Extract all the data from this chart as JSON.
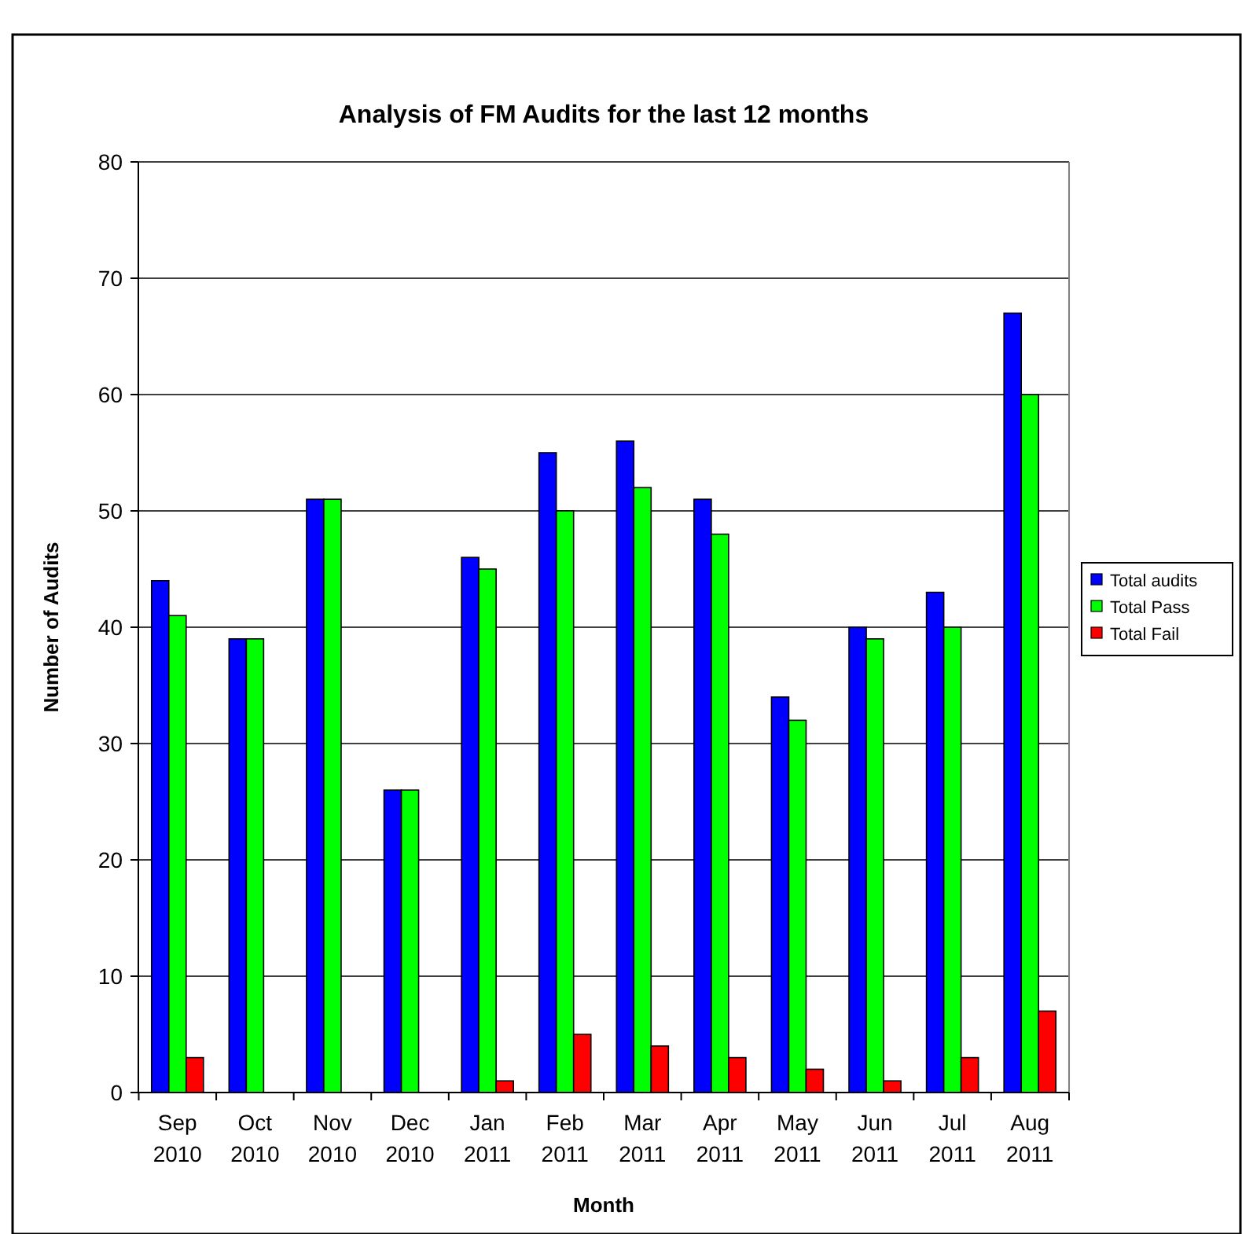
{
  "chart_data": {
    "type": "bar",
    "title": "Analysis of FM Audits for the last 12 months",
    "xlabel": "Month",
    "ylabel": "Number of Audits",
    "categories": [
      "Sep 2010",
      "Oct 2010",
      "Nov 2010",
      "Dec 2010",
      "Jan 2011",
      "Feb 2011",
      "Mar 2011",
      "Apr 2011",
      "May 2011",
      "Jun 2011",
      "Jul 2011",
      "Aug 2011"
    ],
    "series": [
      {
        "name": "Total audits",
        "color": "#0000ff",
        "values": [
          44,
          39,
          51,
          26,
          46,
          55,
          56,
          51,
          34,
          40,
          43,
          67
        ]
      },
      {
        "name": "Total Pass",
        "color": "#00ff00",
        "values": [
          41,
          39,
          51,
          26,
          45,
          50,
          52,
          48,
          32,
          39,
          40,
          60
        ]
      },
      {
        "name": "Total Fail",
        "color": "#ff0000",
        "values": [
          3,
          0,
          0,
          0,
          1,
          5,
          4,
          3,
          2,
          1,
          3,
          7
        ]
      }
    ],
    "ylim": [
      0,
      80
    ],
    "yticks": [
      0,
      10,
      20,
      30,
      40,
      50,
      60,
      70,
      80
    ],
    "grid": "y",
    "legend": "right"
  }
}
